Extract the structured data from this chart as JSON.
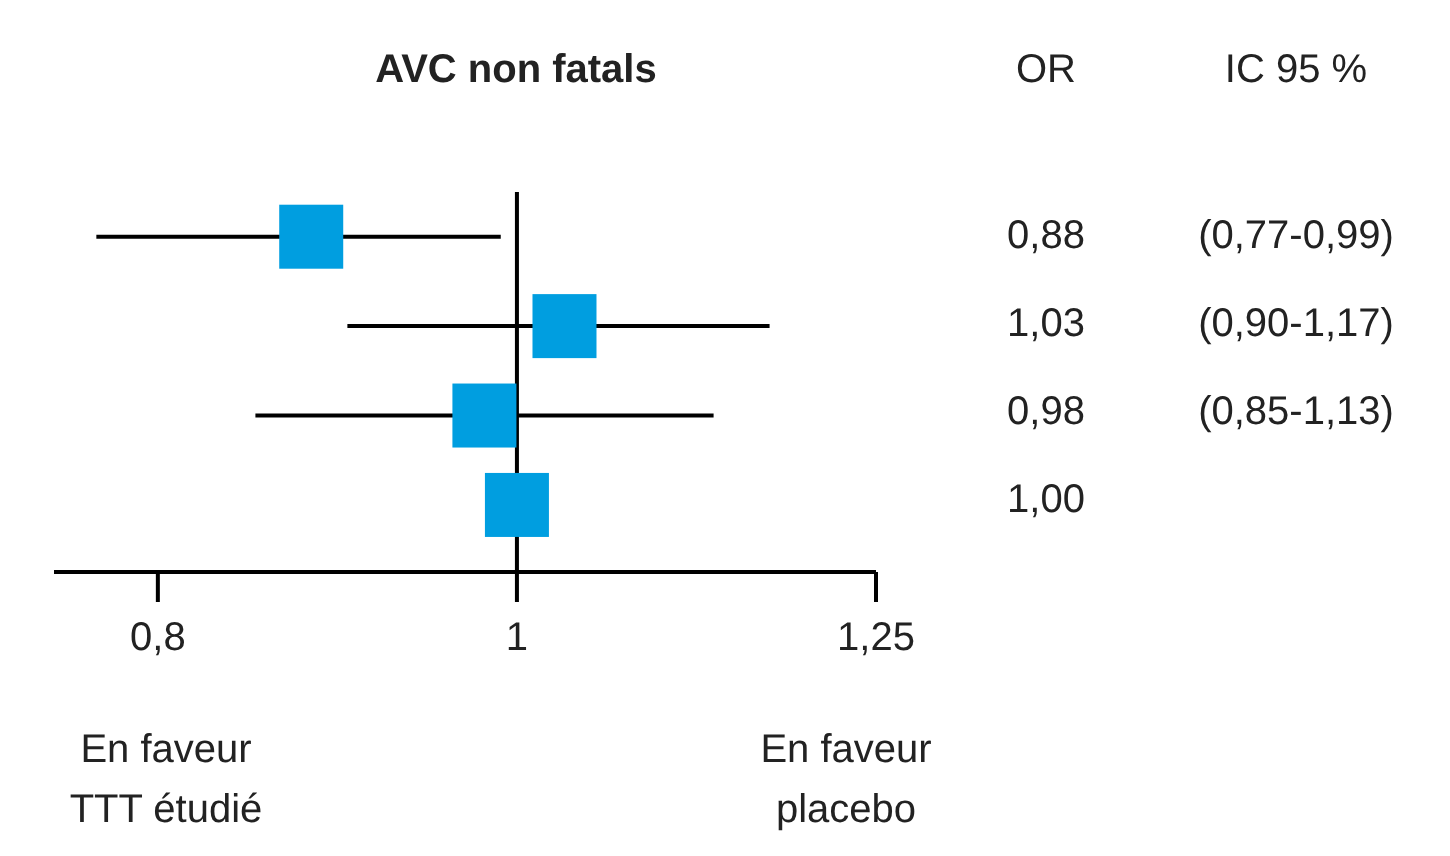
{
  "chart_data": {
    "type": "scatter",
    "orientation": "horizontal",
    "title": "AVC non fatals",
    "categories": [
      null,
      null,
      null,
      null
    ],
    "values": [
      0.88,
      1.03,
      0.98,
      1.0
    ],
    "errors": [
      [
        0.77,
        0.99
      ],
      [
        0.9,
        1.17
      ],
      [
        0.85,
        1.13
      ],
      null
    ],
    "value_labels": [
      "0,88",
      "1,03",
      "0,98",
      "1,00"
    ],
    "color": "#009ee0",
    "marker": "square",
    "log": "x",
    "grid": false,
    "legend": false,
    "xlim": [
      0.75,
      1.25
    ],
    "xticks": [
      {
        "value": 0.8,
        "label": "0,8"
      },
      1,
      {
        "value": 1.25,
        "label": "1,25"
      }
    ],
    "ref_lines": [
      {
        "axis": "x",
        "value": 1,
        "color": "#000000"
      }
    ],
    "annotations": [
      "OR",
      "IC 95 %",
      "(0,77-0,99)",
      "(0,90-1,17)",
      "(0,85-1,13)",
      "En faveur\nTTT étudié",
      "En faveur\nplacebo"
    ]
  }
}
